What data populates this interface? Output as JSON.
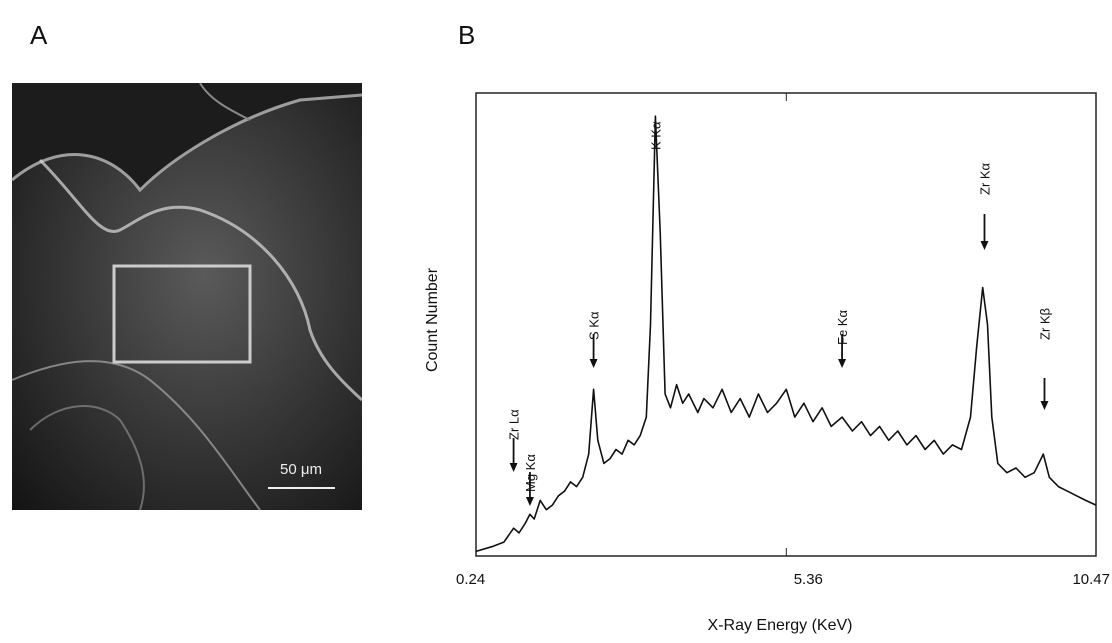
{
  "panel_labels": [
    "A",
    "B"
  ],
  "scale_bar": "50 μm",
  "chart_data": {
    "type": "line",
    "xlabel": "X-Ray Energy (KeV)",
    "ylabel": "Count Number",
    "xlim": [
      0.24,
      10.47
    ],
    "xticks": [
      0.24,
      5.36,
      10.47
    ],
    "ylim": [
      0,
      100
    ],
    "color": "#111111",
    "x": [
      0.24,
      0.5,
      0.7,
      0.86,
      0.95,
      1.05,
      1.13,
      1.2,
      1.3,
      1.4,
      1.5,
      1.6,
      1.7,
      1.8,
      1.9,
      2.0,
      2.1,
      2.18,
      2.25,
      2.35,
      2.45,
      2.55,
      2.65,
      2.75,
      2.85,
      2.95,
      3.05,
      3.12,
      3.2,
      3.28,
      3.36,
      3.45,
      3.55,
      3.65,
      3.75,
      3.9,
      4.0,
      4.15,
      4.3,
      4.45,
      4.6,
      4.75,
      4.9,
      5.05,
      5.2,
      5.36,
      5.5,
      5.65,
      5.8,
      5.95,
      6.1,
      6.28,
      6.45,
      6.6,
      6.75,
      6.9,
      7.05,
      7.2,
      7.35,
      7.5,
      7.65,
      7.8,
      7.95,
      8.1,
      8.25,
      8.4,
      8.5,
      8.6,
      8.68,
      8.75,
      8.85,
      9.0,
      9.15,
      9.3,
      9.45,
      9.6,
      9.7,
      9.85,
      10.0,
      10.15,
      10.3,
      10.47
    ],
    "values": [
      1,
      2,
      3,
      6,
      5,
      7,
      9,
      8,
      12,
      10,
      11,
      13,
      14,
      16,
      15,
      17,
      22,
      36,
      25,
      20,
      21,
      23,
      22,
      25,
      24,
      26,
      30,
      50,
      95,
      70,
      35,
      32,
      37,
      33,
      35,
      31,
      34,
      32,
      36,
      31,
      34,
      30,
      35,
      31,
      33,
      36,
      30,
      33,
      29,
      32,
      28,
      30,
      27,
      29,
      26,
      28,
      25,
      27,
      24,
      26,
      23,
      25,
      22,
      24,
      23,
      30,
      45,
      58,
      50,
      30,
      20,
      18,
      19,
      17,
      18,
      22,
      17,
      15,
      14,
      13,
      12,
      11
    ],
    "annotations": [
      {
        "text": "Zr Lα",
        "x": 0.86
      },
      {
        "text": "Mg Kα",
        "x": 1.13
      },
      {
        "text": "S Kα",
        "x": 2.18
      },
      {
        "text": "K Kα",
        "x": 3.2
      },
      {
        "text": "Fe Kα",
        "x": 6.28
      },
      {
        "text": "Zr Kα",
        "x": 8.63
      },
      {
        "text": "Zr Kβ",
        "x": 9.62
      }
    ]
  }
}
